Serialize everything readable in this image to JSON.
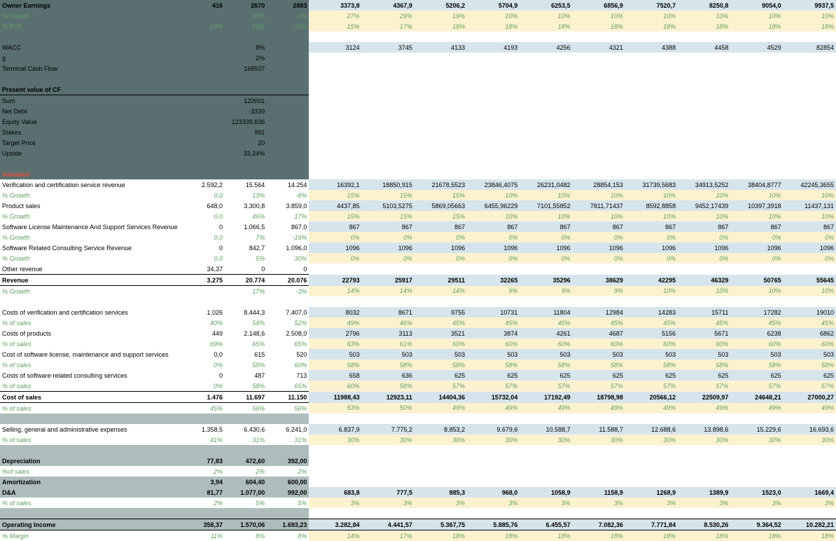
{
  "colors": {
    "dark_bg": "#5a7070",
    "blue_bg": "#d6e4ec",
    "yellow_bg": "#fdf2d0",
    "grey_bg": "#aebcbc",
    "green_text": "#5fa05f",
    "red_text": "#e84c3d"
  },
  "top": {
    "owner_earnings": {
      "label": "Owner Earnings",
      "hist": [
        "416",
        "2670",
        "2883"
      ],
      "proj": [
        "3373,8",
        "4367,9",
        "5206,2",
        "5704,9",
        "6253,5",
        "6856,9",
        "7520,7",
        "8250,8",
        "9054,0",
        "9937,5"
      ]
    },
    "growth": {
      "label": "% Growth",
      "hist": [
        "",
        "37%",
        "0%"
      ],
      "proj": [
        "27%",
        "29%",
        "19%",
        "10%",
        "10%",
        "10%",
        "10%",
        "10%",
        "10%",
        "10%"
      ]
    },
    "fcf": {
      "label": "% FCF",
      "hist": [
        "13%",
        "13%",
        "13%"
      ],
      "proj": [
        "15%",
        "17%",
        "18%",
        "18%",
        "18%",
        "18%",
        "18%",
        "18%",
        "18%",
        "18%"
      ]
    }
  },
  "params": {
    "wacc": {
      "label": "WACC",
      "val": "8%"
    },
    "g": {
      "label": "g",
      "val": "2%"
    },
    "tcf": {
      "label": "Terminal Cash Flow",
      "val": "168937"
    },
    "proj_row": [
      "3124",
      "3745",
      "4133",
      "4193",
      "4256",
      "4321",
      "4388",
      "4458",
      "4529",
      "82854"
    ]
  },
  "pvcf": {
    "header": "Present value of CF",
    "sum": {
      "label": "Sum",
      "val": "120001"
    },
    "netdebt": {
      "label": "Net Debt",
      "val": "-3339"
    },
    "equity": {
      "label": "Equity Value",
      "val": "123339,836"
    },
    "stakes": {
      "label": "Stakes",
      "val": "991"
    },
    "target": {
      "label": "Target Price",
      "val": "20"
    },
    "upside": {
      "label": "Upside",
      "val": "33,24%"
    }
  },
  "valuation_header": "Valuation",
  "rows": [
    {
      "label": "Verification and certification service revenue",
      "hist": [
        "2.592,2",
        "15.564",
        "14.254"
      ],
      "proj": [
        "16392,1",
        "18850,915",
        "21678,5523",
        "23846,4075",
        "26231,0482",
        "28854,153",
        "31739,5683",
        "34913,5252",
        "38404,8777",
        "42245,3655"
      ],
      "bg": "blue"
    },
    {
      "label": "% Growth",
      "italic": true,
      "green": true,
      "hist": [
        "0,0",
        "13%",
        "-8%"
      ],
      "proj": [
        "15%",
        "15%",
        "15%",
        "10%",
        "10%",
        "10%",
        "10%",
        "10%",
        "10%",
        "10%"
      ],
      "bg": "yellow"
    },
    {
      "label": "Product sales",
      "hist": [
        "648,0",
        "3.300,8",
        "3.859,0"
      ],
      "proj": [
        "4437,85",
        "5103,5275",
        "5869,05663",
        "6455,96229",
        "7101,55852",
        "7811,71437",
        "8592,8858",
        "9452,17439",
        "10397,3918",
        "11437,131"
      ],
      "bg": "blue"
    },
    {
      "label": "% Growth",
      "italic": true,
      "green": true,
      "hist": [
        "0,0",
        "46%",
        "17%"
      ],
      "proj": [
        "15%",
        "15%",
        "15%",
        "10%",
        "10%",
        "10%",
        "10%",
        "10%",
        "10%",
        "10%"
      ],
      "bg": "yellow"
    },
    {
      "label": "Software License Maintenance And Support Services Revenue",
      "hist": [
        "0",
        "1.066,5",
        "867,0"
      ],
      "proj": [
        "867",
        "867",
        "867",
        "867",
        "867",
        "867",
        "867",
        "867",
        "867",
        "867"
      ],
      "bg": "blue"
    },
    {
      "label": "% Growth",
      "italic": true,
      "green": true,
      "hist": [
        "0,0",
        "7%",
        "-19%"
      ],
      "proj": [
        "0%",
        "0%",
        "0%",
        "0%",
        "0%",
        "0%",
        "0%",
        "0%",
        "0%",
        "0%"
      ],
      "bg": "yellow"
    },
    {
      "label": "Software Related Consulting Service Revenue",
      "hist": [
        "0",
        "842,7",
        "1.096,0"
      ],
      "proj": [
        "1096",
        "1096",
        "1096",
        "1096",
        "1096",
        "1096",
        "1096",
        "1096",
        "1096",
        "1096"
      ],
      "bg": "blue"
    },
    {
      "label": "% Growth",
      "italic": true,
      "green": true,
      "hist": [
        "0,0",
        "5%",
        "30%"
      ],
      "proj": [
        "0%",
        "0%",
        "0%",
        "0%",
        "0%",
        "0%",
        "0%",
        "0%",
        "0%",
        "0%"
      ],
      "bg": "yellow"
    },
    {
      "label": "Other revenue",
      "hist": [
        "34,37",
        "0",
        "0"
      ],
      "proj": [
        "",
        "",
        "",
        "",
        "",
        "",
        "",
        "",
        "",
        ""
      ],
      "bg": "none"
    },
    {
      "label": "Revenue",
      "bold": true,
      "border": "both",
      "hist": [
        "3.275",
        "20.774",
        "20.076"
      ],
      "proj": [
        "22793",
        "25917",
        "29511",
        "32265",
        "35296",
        "38629",
        "42295",
        "46329",
        "50765",
        "55645"
      ],
      "bg": "blue"
    },
    {
      "label": "% Growth",
      "italic": true,
      "green": true,
      "hist": [
        "",
        "17%",
        "-3%"
      ],
      "proj": [
        "14%",
        "14%",
        "14%",
        "9%",
        "9%",
        "9%",
        "10%",
        "10%",
        "10%",
        "10%"
      ],
      "bg": "yellow"
    },
    {
      "spacer": true
    },
    {
      "label": "Costs of verification and certification services",
      "hist": [
        "1.026",
        "8.444,3",
        "7.407,0"
      ],
      "proj": [
        "8032",
        "8671",
        "9755",
        "10731",
        "11804",
        "12984",
        "14283",
        "15711",
        "17282",
        "19010"
      ],
      "bg": "blue"
    },
    {
      "label": "% of sales",
      "italic": true,
      "green": true,
      "hist": [
        "40%",
        "54%",
        "52%"
      ],
      "proj": [
        "49%",
        "46%",
        "45%",
        "45%",
        "45%",
        "45%",
        "45%",
        "45%",
        "45%",
        "45%"
      ],
      "bg": "yellow"
    },
    {
      "label": "Costs of products",
      "hist": [
        "449",
        "2.148,6",
        "2.508,0"
      ],
      "proj": [
        "2796",
        "3113",
        "3521",
        "3874",
        "4261",
        "4687",
        "5156",
        "5671",
        "6238",
        "6862"
      ],
      "bg": "blue"
    },
    {
      "label": "% of sales",
      "italic": true,
      "green": true,
      "hist": [
        "69%",
        "65%",
        "65%"
      ],
      "proj": [
        "63%",
        "61%",
        "60%",
        "60%",
        "60%",
        "60%",
        "60%",
        "60%",
        "60%",
        "60%"
      ],
      "bg": "yellow"
    },
    {
      "label": "Cost of software license, maintenance and support services",
      "hist": [
        "0,0",
        "615",
        "520"
      ],
      "proj": [
        "503",
        "503",
        "503",
        "503",
        "503",
        "503",
        "503",
        "503",
        "503",
        "503"
      ],
      "bg": "blue"
    },
    {
      "label": "% of sales",
      "italic": true,
      "green": true,
      "hist": [
        "0%",
        "58%",
        "60%"
      ],
      "proj": [
        "58%",
        "58%",
        "58%",
        "58%",
        "58%",
        "58%",
        "58%",
        "58%",
        "58%",
        "58%"
      ],
      "bg": "yellow"
    },
    {
      "label": "Costs of software-related consulting services",
      "hist": [
        "0",
        "487",
        "713"
      ],
      "proj": [
        "658",
        "636",
        "625",
        "625",
        "625",
        "625",
        "625",
        "625",
        "625",
        "625"
      ],
      "bg": "blue"
    },
    {
      "label": "% of sales",
      "italic": true,
      "green": true,
      "hist": [
        "0%",
        "58%",
        "65%"
      ],
      "proj": [
        "60%",
        "58%",
        "57%",
        "57%",
        "57%",
        "57%",
        "57%",
        "57%",
        "57%",
        "57%"
      ],
      "bg": "yellow"
    },
    {
      "label": "Cost of sales",
      "bold": true,
      "border": "both",
      "hist": [
        "1.476",
        "11.697",
        "11.150"
      ],
      "proj": [
        "11988,43",
        "12923,11",
        "14404,36",
        "15732,04",
        "17192,49",
        "18798,98",
        "20566,12",
        "22509,97",
        "24648,21",
        "27000,27"
      ],
      "bg": "blue"
    },
    {
      "label": "% of sales",
      "italic": true,
      "green": true,
      "hist": [
        "45%",
        "56%",
        "56%"
      ],
      "proj": [
        "53%",
        "50%",
        "49%",
        "49%",
        "49%",
        "49%",
        "49%",
        "49%",
        "49%",
        "49%"
      ],
      "bg": "yellow"
    },
    {
      "spacer": true,
      "grey": true
    },
    {
      "label": "Selling, general and administrative expenses",
      "hist": [
        "1.358,5",
        "6.430,6",
        "6.241,0"
      ],
      "proj": [
        "6.837,9",
        "7.775,2",
        "8.853,2",
        "9.679,6",
        "10.588,7",
        "11.588,7",
        "12.688,6",
        "13.898,6",
        "15.229,6",
        "16.693,6"
      ],
      "bg": "blue"
    },
    {
      "label": "% of sales",
      "italic": true,
      "green": true,
      "hist": [
        "41%",
        "31%",
        "31%"
      ],
      "proj": [
        "30%",
        "30%",
        "30%",
        "30%",
        "30%",
        "30%",
        "30%",
        "30%",
        "30%",
        "30%"
      ],
      "bg": "yellow"
    },
    {
      "spacer": true,
      "grey": true
    },
    {
      "label": "Depreciation",
      "bold": true,
      "greybg": true,
      "hist": [
        "77,83",
        "472,60",
        "392,00"
      ],
      "proj": [
        "",
        "",
        "",
        "",
        "",
        "",
        "",
        "",
        "",
        ""
      ],
      "bg": "none"
    },
    {
      "label": "%of sales",
      "italic": true,
      "green": true,
      "whitebg": true,
      "hist": [
        "2%",
        "2%",
        "2%"
      ],
      "proj": [
        "",
        "",
        "",
        "",
        "",
        "",
        "",
        "",
        "",
        ""
      ],
      "bg": "none"
    },
    {
      "label": "Amortization",
      "bold": true,
      "greybg": true,
      "hist": [
        "3,94",
        "604,40",
        "600,00"
      ],
      "proj": [
        "",
        "",
        "",
        "",
        "",
        "",
        "",
        "",
        "",
        ""
      ],
      "bg": "none"
    },
    {
      "label": "D&A",
      "bold": true,
      "greybg": true,
      "hist": [
        "81,77",
        "1.077,00",
        "992,00"
      ],
      "proj": [
        "683,8",
        "777,5",
        "885,3",
        "968,0",
        "1058,9",
        "1158,9",
        "1268,9",
        "1389,9",
        "1523,0",
        "1669,4"
      ],
      "bg": "blue"
    },
    {
      "label": "% of sales",
      "italic": true,
      "green": true,
      "hist": [
        "2%",
        "5%",
        "5%"
      ],
      "proj": [
        "3%",
        "3%",
        "3%",
        "3%",
        "3%",
        "3%",
        "3%",
        "3%",
        "3%",
        "3%"
      ],
      "bg": "yellow"
    },
    {
      "spacer": true,
      "grey": true
    },
    {
      "label": "Operating Income",
      "bold": true,
      "greybg": true,
      "border": "both",
      "hist": [
        "358,37",
        "1.570,06",
        "1.693,23"
      ],
      "proj": [
        "3.282,84",
        "4.441,57",
        "5.367,75",
        "5.885,76",
        "6.455,57",
        "7.082,36",
        "7.771,84",
        "8.530,26",
        "9.364,52",
        "10.282,21"
      ],
      "bg": "blue",
      "proj_border": "both"
    },
    {
      "label": "% Margin",
      "italic": true,
      "green": true,
      "hist": [
        "11%",
        "8%",
        "8%"
      ],
      "proj": [
        "14%",
        "17%",
        "18%",
        "18%",
        "18%",
        "18%",
        "18%",
        "18%",
        "18%",
        "18%"
      ],
      "bg": "yellow"
    }
  ]
}
